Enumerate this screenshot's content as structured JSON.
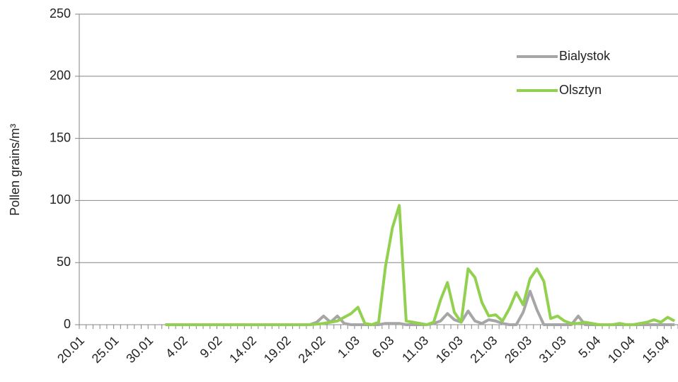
{
  "chart_data": {
    "type": "line",
    "y_label": "Pollen grains/m³",
    "categories": [
      "20.01",
      null,
      null,
      null,
      null,
      "25.01",
      null,
      null,
      null,
      null,
      "30.01",
      null,
      null,
      null,
      null,
      "4.02",
      null,
      null,
      null,
      null,
      "9.02",
      null,
      null,
      null,
      null,
      "14.02",
      null,
      null,
      null,
      null,
      "19.02",
      null,
      null,
      null,
      null,
      "24.02",
      null,
      null,
      null,
      null,
      "1.03",
      null,
      null,
      null,
      null,
      "6.03",
      null,
      null,
      null,
      null,
      "11.03",
      null,
      null,
      null,
      null,
      "16.03",
      null,
      null,
      null,
      null,
      "21.03",
      null,
      null,
      null,
      null,
      "26.03",
      null,
      null,
      null,
      null,
      "31.03",
      null,
      null,
      null,
      null,
      "5.04",
      null,
      null,
      null,
      null,
      "10.04",
      null,
      null,
      null,
      null,
      "15.04",
      null
    ],
    "series": [
      {
        "name": "Bialystok",
        "color": "#a6a6a6",
        "values": [
          null,
          null,
          null,
          null,
          null,
          null,
          null,
          null,
          null,
          null,
          null,
          null,
          0,
          0,
          0,
          0,
          0,
          0,
          0,
          0,
          0,
          0,
          0,
          0,
          0,
          0,
          0,
          0,
          0,
          0,
          0,
          0,
          0,
          0,
          2,
          7,
          2,
          7,
          1,
          0,
          0,
          0,
          0,
          0,
          1,
          1,
          1,
          0,
          0,
          0,
          0,
          1,
          3,
          9,
          4,
          2,
          11,
          3,
          1,
          4,
          3,
          1,
          0,
          0,
          10,
          27,
          12,
          0,
          0,
          0,
          0,
          0,
          7,
          0,
          0,
          0,
          0,
          0,
          0,
          0,
          0,
          0,
          0,
          0,
          0,
          0,
          0
        ]
      },
      {
        "name": "Olsztyn",
        "color": "#92d050",
        "values": [
          null,
          null,
          null,
          null,
          null,
          null,
          null,
          null,
          null,
          null,
          null,
          null,
          0,
          0,
          0,
          0,
          0,
          0,
          0,
          0,
          0,
          0,
          0,
          0,
          0,
          0,
          0,
          0,
          0,
          0,
          0,
          0,
          0,
          0,
          0.5,
          1,
          2,
          3,
          6,
          9,
          14,
          1,
          0,
          2,
          47,
          78,
          96,
          3,
          2,
          1,
          0,
          2,
          20,
          34,
          10,
          2,
          45,
          38,
          18,
          7,
          8,
          3,
          13,
          26,
          16,
          37,
          45,
          35,
          5,
          7,
          3,
          1,
          1,
          2,
          1,
          0,
          0,
          0,
          1,
          0,
          0,
          1,
          2,
          4,
          2,
          6,
          3
        ]
      }
    ],
    "ylim": [
      0,
      250
    ],
    "yticks": [
      0,
      50,
      100,
      150,
      200,
      250
    ],
    "grid": true,
    "legend": "upper right"
  }
}
